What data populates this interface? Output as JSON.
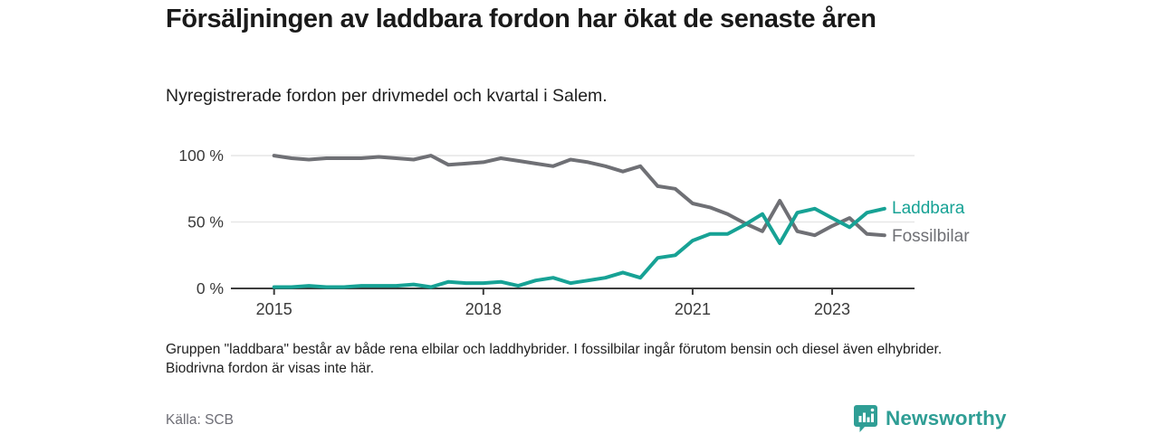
{
  "header": {
    "title": "Försäljningen av laddbara fordon har ökat de senaste åren",
    "subtitle": "Nyregistrerade fordon per drivmedel och kvartal i Salem."
  },
  "chart_data": {
    "type": "line",
    "x_interval": "quarter",
    "categories": [
      "2015Q1",
      "2015Q2",
      "2015Q3",
      "2015Q4",
      "2016Q1",
      "2016Q2",
      "2016Q3",
      "2016Q4",
      "2017Q1",
      "2017Q2",
      "2017Q3",
      "2017Q4",
      "2018Q1",
      "2018Q2",
      "2018Q3",
      "2018Q4",
      "2019Q1",
      "2019Q2",
      "2019Q3",
      "2019Q4",
      "2020Q1",
      "2020Q2",
      "2020Q3",
      "2020Q4",
      "2021Q1",
      "2021Q2",
      "2021Q3",
      "2021Q4",
      "2022Q1",
      "2022Q2",
      "2022Q3",
      "2022Q4",
      "2023Q1",
      "2023Q2",
      "2023Q3",
      "2023Q4"
    ],
    "series": [
      {
        "name": "Laddbara",
        "color": "#17a295",
        "values": [
          1,
          1,
          2,
          1,
          1,
          2,
          2,
          2,
          3,
          1,
          5,
          4,
          4,
          5,
          2,
          6,
          8,
          4,
          6,
          8,
          12,
          8,
          23,
          25,
          36,
          41,
          41,
          48,
          56,
          34,
          57,
          60,
          53,
          46,
          57,
          60
        ]
      },
      {
        "name": "Fossilbilar",
        "color": "#6f7075",
        "values": [
          100,
          98,
          97,
          98,
          98,
          98,
          99,
          98,
          97,
          100,
          93,
          94,
          95,
          98,
          96,
          94,
          92,
          97,
          95,
          92,
          88,
          92,
          77,
          75,
          64,
          61,
          56,
          49,
          43,
          66,
          43,
          40,
          47,
          53,
          41,
          40
        ]
      }
    ],
    "xticks": [
      {
        "label": "2015",
        "index": 0
      },
      {
        "label": "2018",
        "index": 12
      },
      {
        "label": "2021",
        "index": 24
      },
      {
        "label": "2023",
        "index": 32
      }
    ],
    "yticks": [
      {
        "label": "0 %",
        "value": 0
      },
      {
        "label": "50 %",
        "value": 50
      },
      {
        "label": "100 %",
        "value": 100
      }
    ],
    "ylim": [
      0,
      100
    ],
    "grid": "horizontal",
    "legend_position": "right-of-line-ends"
  },
  "footnote": "Gruppen \"laddbara\" består av både rena elbilar och laddhybrider. I fossilbilar ingår förutom bensin och diesel även elhybrider. Biodrivna fordon är visas inte här.",
  "footer": {
    "source": "Källa: SCB",
    "brand": "Newsworthy"
  },
  "colors": {
    "accent": "#17a295",
    "line_gray": "#6f7075",
    "grid": "#e4e4e4",
    "axis": "#3d3d3d",
    "tick_label": "#3a3a3a",
    "brand": "#2f9e95"
  }
}
